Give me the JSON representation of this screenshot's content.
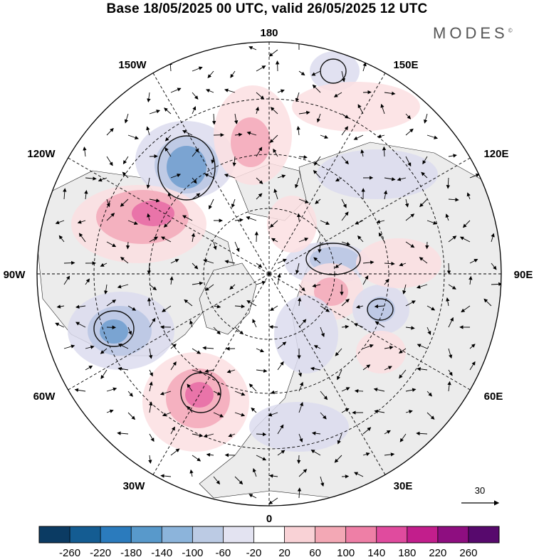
{
  "title": "Base 18/05/2025 00 UTC, valid 26/05/2025 12 UTC",
  "brand": "MODES",
  "brand_mark": "©",
  "meridian_labels": {
    "m180": "180",
    "m150e": "150E",
    "m120e": "120E",
    "m90e": "90E",
    "m60e": "60E",
    "m30e": "30E",
    "m0": "0",
    "m30w": "30W",
    "m60w": "60W",
    "m90w": "90W",
    "m120w": "120W",
    "m150w": "150W"
  },
  "vector_reference": "30",
  "colorbar": {
    "ticks": [
      "-260",
      "-220",
      "-180",
      "-140",
      "-100",
      "-60",
      "-20",
      "20",
      "60",
      "100",
      "140",
      "180",
      "220",
      "260"
    ],
    "colors": [
      "#0b3b63",
      "#145c92",
      "#2b7bbd",
      "#5899cb",
      "#8cb4db",
      "#bccbe4",
      "#e3e3f1",
      "#ffffff",
      "#f9d2d6",
      "#f3a8b5",
      "#ee7fa6",
      "#e04b9e",
      "#c21e8c",
      "#8e0e80",
      "#57096d"
    ]
  },
  "colors": {
    "land": "#ececec",
    "ocean": "#ffffff",
    "neg_light": "#dcdcee",
    "neg_mid": "#b9c6e3",
    "neg_strong": "#6f9dcf",
    "pos_light": "#fbdfe2",
    "pos_mid": "#f3a8b8",
    "pos_strong": "#e66aa4"
  }
}
